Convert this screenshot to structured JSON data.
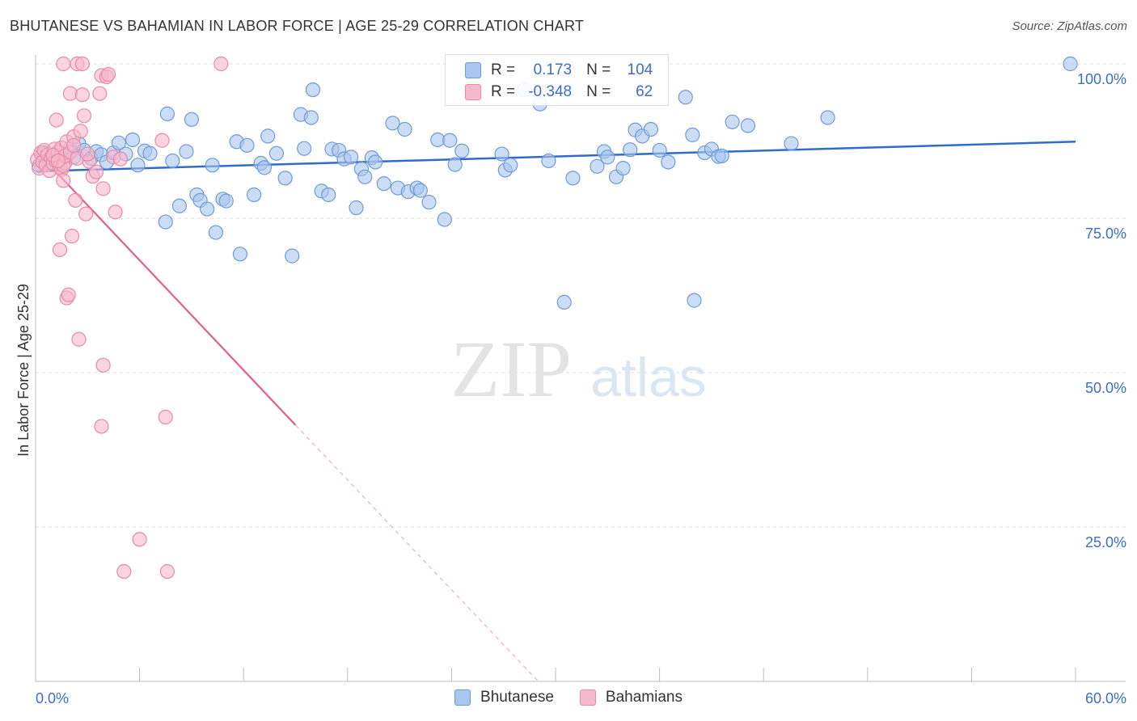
{
  "header": {
    "title": "BHUTANESE VS BAHAMIAN IN LABOR FORCE | AGE 25-29 CORRELATION CHART",
    "source": "Source: ZipAtlas.com"
  },
  "watermark": {
    "zip": "ZIP",
    "atlas": "atlas"
  },
  "legend": {
    "rows": [
      {
        "r_label": "R =",
        "r_value": "0.173",
        "n_label": "N =",
        "n_value": "104"
      },
      {
        "r_label": "R =",
        "r_value": "-0.348",
        "n_label": "N =",
        "n_value": "62"
      }
    ]
  },
  "chart_data": {
    "type": "scatter",
    "title": "BHUTANESE VS BAHAMIAN IN LABOR FORCE | AGE 25-29 CORRELATION CHART",
    "xlabel": "",
    "ylabel": "In Labor Force | Age 25-29",
    "xlim": [
      0,
      60
    ],
    "ylim": [
      0,
      100
    ],
    "x_tick_labels": [
      "0.0%",
      "60.0%"
    ],
    "y_tick_labels": [
      "25.0%",
      "50.0%",
      "75.0%",
      "100.0%"
    ],
    "y_ticks": [
      25,
      50,
      75,
      100
    ],
    "grid": true,
    "legend_position": "top-center",
    "colors": {
      "blue_fill": "#a9c6ef",
      "blue_stroke": "#6f9ad9",
      "blue_line": "#2f6cc7",
      "pink_fill": "#f6b8cc",
      "pink_stroke": "#e88aa8",
      "pink_line": "#e0608f",
      "tick_label": "#3a6fc4"
    },
    "series": [
      {
        "name": "Bhutanese",
        "color": "#a9c6ef",
        "points": [
          [
            0.2,
            83.5
          ],
          [
            0.4,
            84.8
          ],
          [
            0.5,
            85.6
          ],
          [
            0.6,
            84.2
          ],
          [
            0.8,
            83.9
          ],
          [
            1.0,
            85.2
          ],
          [
            1.2,
            84.0
          ],
          [
            1.5,
            84.6
          ],
          [
            1.8,
            85.1
          ],
          [
            2.0,
            86.3
          ],
          [
            2.2,
            84.9
          ],
          [
            2.5,
            87.1
          ],
          [
            2.8,
            86.0
          ],
          [
            3.2,
            84.7
          ],
          [
            3.5,
            85.8
          ],
          [
            3.8,
            85.3
          ],
          [
            4.1,
            84.1
          ],
          [
            4.5,
            85.6
          ],
          [
            4.8,
            87.2
          ],
          [
            5.2,
            85.4
          ],
          [
            5.6,
            87.7
          ],
          [
            5.9,
            83.6
          ],
          [
            6.3,
            85.9
          ],
          [
            6.6,
            85.5
          ],
          [
            7.5,
            74.4
          ],
          [
            7.6,
            91.9
          ],
          [
            7.9,
            84.3
          ],
          [
            8.3,
            77.0
          ],
          [
            8.7,
            85.8
          ],
          [
            9.0,
            91.0
          ],
          [
            9.3,
            78.8
          ],
          [
            9.5,
            77.9
          ],
          [
            9.9,
            76.5
          ],
          [
            10.2,
            83.6
          ],
          [
            10.4,
            72.7
          ],
          [
            10.8,
            78.1
          ],
          [
            11.0,
            77.8
          ],
          [
            11.6,
            87.4
          ],
          [
            11.8,
            69.2
          ],
          [
            12.2,
            86.8
          ],
          [
            12.6,
            78.8
          ],
          [
            13.0,
            83.9
          ],
          [
            13.2,
            83.2
          ],
          [
            13.4,
            88.3
          ],
          [
            13.9,
            85.5
          ],
          [
            14.4,
            81.5
          ],
          [
            14.8,
            68.9
          ],
          [
            15.3,
            91.8
          ],
          [
            15.5,
            86.3
          ],
          [
            15.9,
            91.3
          ],
          [
            16.0,
            95.8
          ],
          [
            16.5,
            79.4
          ],
          [
            16.9,
            78.8
          ],
          [
            17.1,
            86.2
          ],
          [
            17.5,
            86.0
          ],
          [
            17.8,
            84.6
          ],
          [
            18.2,
            84.9
          ],
          [
            18.5,
            76.7
          ],
          [
            18.8,
            83.0
          ],
          [
            19.0,
            81.7
          ],
          [
            19.4,
            84.8
          ],
          [
            19.6,
            84.1
          ],
          [
            20.1,
            80.6
          ],
          [
            20.6,
            90.4
          ],
          [
            20.9,
            79.9
          ],
          [
            21.3,
            89.4
          ],
          [
            21.5,
            79.3
          ],
          [
            22.0,
            79.9
          ],
          [
            22.2,
            79.5
          ],
          [
            22.7,
            77.6
          ],
          [
            23.2,
            87.7
          ],
          [
            23.6,
            74.8
          ],
          [
            23.9,
            87.6
          ],
          [
            24.2,
            83.7
          ],
          [
            24.6,
            85.9
          ],
          [
            26.9,
            85.4
          ],
          [
            27.1,
            82.8
          ],
          [
            27.4,
            83.6
          ],
          [
            28.2,
            95.8
          ],
          [
            29.1,
            93.5
          ],
          [
            29.6,
            84.3
          ],
          [
            30.5,
            61.4
          ],
          [
            31.0,
            81.5
          ],
          [
            32.4,
            83.4
          ],
          [
            32.8,
            85.8
          ],
          [
            33.0,
            84.9
          ],
          [
            33.5,
            81.7
          ],
          [
            33.9,
            83.1
          ],
          [
            34.3,
            86.1
          ],
          [
            34.6,
            89.3
          ],
          [
            35.0,
            88.3
          ],
          [
            35.5,
            89.4
          ],
          [
            36.0,
            86.0
          ],
          [
            36.5,
            84.1
          ],
          [
            37.5,
            94.6
          ],
          [
            37.9,
            88.5
          ],
          [
            38.0,
            61.7
          ],
          [
            38.6,
            85.6
          ],
          [
            39.0,
            86.2
          ],
          [
            39.4,
            85.0
          ],
          [
            39.6,
            85.1
          ],
          [
            40.2,
            90.6
          ],
          [
            41.1,
            90.0
          ],
          [
            43.6,
            87.1
          ],
          [
            45.7,
            91.3
          ],
          [
            59.7,
            100.0
          ]
        ]
      },
      {
        "name": "Bahamians",
        "color": "#f6b8cc",
        "points": [
          [
            0.1,
            84.5
          ],
          [
            0.2,
            83.1
          ],
          [
            0.3,
            85.6
          ],
          [
            0.4,
            84.1
          ],
          [
            0.5,
            86.0
          ],
          [
            0.6,
            83.6
          ],
          [
            0.7,
            85.3
          ],
          [
            0.8,
            82.7
          ],
          [
            0.9,
            84.8
          ],
          [
            1.0,
            83.9
          ],
          [
            1.1,
            86.2
          ],
          [
            1.2,
            84.2
          ],
          [
            1.3,
            85.7
          ],
          [
            1.4,
            83.3
          ],
          [
            1.5,
            82.9
          ],
          [
            1.6,
            81.1
          ],
          [
            1.7,
            84.0
          ],
          [
            1.8,
            62.1
          ],
          [
            1.9,
            62.6
          ],
          [
            1.2,
            90.9
          ],
          [
            1.4,
            69.9
          ],
          [
            1.5,
            86.4
          ],
          [
            1.6,
            83.5
          ],
          [
            1.7,
            85.1
          ],
          [
            1.6,
            100.0
          ],
          [
            1.8,
            87.4
          ],
          [
            2.0,
            85.7
          ],
          [
            2.0,
            95.2
          ],
          [
            2.1,
            72.1
          ],
          [
            2.2,
            88.2
          ],
          [
            2.3,
            77.9
          ],
          [
            2.4,
            84.7
          ],
          [
            2.5,
            55.4
          ],
          [
            2.6,
            89.1
          ],
          [
            2.7,
            95.0
          ],
          [
            2.8,
            91.6
          ],
          [
            2.4,
            100.0
          ],
          [
            2.7,
            100.0
          ],
          [
            2.9,
            75.7
          ],
          [
            3.1,
            84.2
          ],
          [
            3.3,
            81.8
          ],
          [
            3.5,
            82.5
          ],
          [
            3.7,
            95.2
          ],
          [
            3.8,
            98.1
          ],
          [
            3.8,
            41.3
          ],
          [
            3.9,
            79.8
          ],
          [
            4.1,
            97.9
          ],
          [
            3.9,
            51.2
          ],
          [
            4.5,
            84.9
          ],
          [
            4.6,
            76.0
          ],
          [
            4.9,
            84.6
          ],
          [
            4.2,
            98.3
          ],
          [
            5.1,
            17.8
          ],
          [
            6.0,
            23.0
          ],
          [
            7.3,
            87.6
          ],
          [
            7.5,
            42.8
          ],
          [
            7.6,
            17.8
          ],
          [
            10.7,
            100.0
          ],
          [
            1.0,
            85.2
          ],
          [
            1.3,
            84.3
          ],
          [
            2.2,
            86.8
          ],
          [
            3.0,
            85.4
          ]
        ]
      }
    ],
    "trend_lines": [
      {
        "series": "Bhutanese",
        "x": [
          0,
          60
        ],
        "y": [
          82.6,
          87.4
        ]
      },
      {
        "series": "Bahamians",
        "x": [
          0,
          15
        ],
        "y": [
          86.0,
          41.5
        ],
        "dashed_to": [
          29,
          0
        ]
      }
    ]
  },
  "bottom_legend": {
    "items": [
      "Bhutanese",
      "Bahamians"
    ]
  }
}
